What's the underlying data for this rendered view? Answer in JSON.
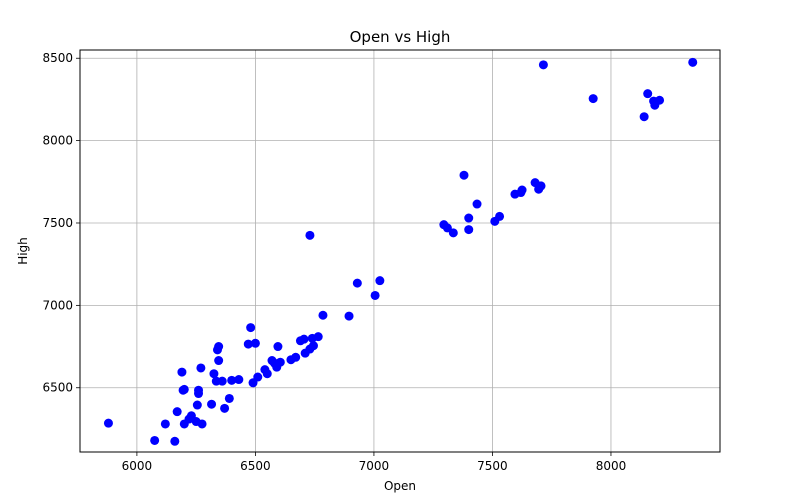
{
  "chart_data": {
    "type": "scatter",
    "title": "Open vs High",
    "xlabel": "Open",
    "ylabel": "High",
    "xlim": [
      5760,
      8460
    ],
    "ylim": [
      6110,
      8550
    ],
    "xticks": [
      6000,
      6500,
      7000,
      7500,
      8000
    ],
    "yticks": [
      6500,
      7000,
      7500,
      8000,
      8500
    ],
    "grid": true,
    "marker_color": "#0000ff",
    "points": [
      [
        5880,
        6285
      ],
      [
        6075,
        6180
      ],
      [
        6120,
        6280
      ],
      [
        6160,
        6175
      ],
      [
        6170,
        6355
      ],
      [
        6190,
        6595
      ],
      [
        6195,
        6485
      ],
      [
        6200,
        6490
      ],
      [
        6200,
        6280
      ],
      [
        6220,
        6310
      ],
      [
        6230,
        6330
      ],
      [
        6250,
        6295
      ],
      [
        6255,
        6395
      ],
      [
        6260,
        6465
      ],
      [
        6260,
        6485
      ],
      [
        6270,
        6620
      ],
      [
        6275,
        6280
      ],
      [
        6315,
        6400
      ],
      [
        6325,
        6585
      ],
      [
        6335,
        6540
      ],
      [
        6340,
        6730
      ],
      [
        6345,
        6750
      ],
      [
        6345,
        6665
      ],
      [
        6360,
        6540
      ],
      [
        6370,
        6375
      ],
      [
        6390,
        6435
      ],
      [
        6400,
        6545
      ],
      [
        6430,
        6550
      ],
      [
        6470,
        6765
      ],
      [
        6480,
        6865
      ],
      [
        6490,
        6530
      ],
      [
        6500,
        6770
      ],
      [
        6510,
        6565
      ],
      [
        6540,
        6610
      ],
      [
        6550,
        6585
      ],
      [
        6570,
        6665
      ],
      [
        6580,
        6650
      ],
      [
        6590,
        6625
      ],
      [
        6595,
        6750
      ],
      [
        6605,
        6655
      ],
      [
        6650,
        6670
      ],
      [
        6670,
        6685
      ],
      [
        6690,
        6785
      ],
      [
        6705,
        6795
      ],
      [
        6710,
        6710
      ],
      [
        6730,
        6735
      ],
      [
        6730,
        7425
      ],
      [
        6740,
        6800
      ],
      [
        6745,
        6755
      ],
      [
        6765,
        6810
      ],
      [
        6785,
        6940
      ],
      [
        6895,
        6935
      ],
      [
        6930,
        7135
      ],
      [
        7005,
        7060
      ],
      [
        7025,
        7150
      ],
      [
        7295,
        7490
      ],
      [
        7310,
        7470
      ],
      [
        7335,
        7440
      ],
      [
        7380,
        7790
      ],
      [
        7400,
        7530
      ],
      [
        7400,
        7460
      ],
      [
        7435,
        7615
      ],
      [
        7510,
        7510
      ],
      [
        7530,
        7540
      ],
      [
        7595,
        7675
      ],
      [
        7620,
        7685
      ],
      [
        7625,
        7700
      ],
      [
        7680,
        7745
      ],
      [
        7695,
        7705
      ],
      [
        7705,
        7725
      ],
      [
        7715,
        8460
      ],
      [
        7925,
        8255
      ],
      [
        8140,
        8145
      ],
      [
        8155,
        8285
      ],
      [
        8180,
        8240
      ],
      [
        8185,
        8215
      ],
      [
        8205,
        8245
      ],
      [
        8345,
        8475
      ]
    ]
  }
}
